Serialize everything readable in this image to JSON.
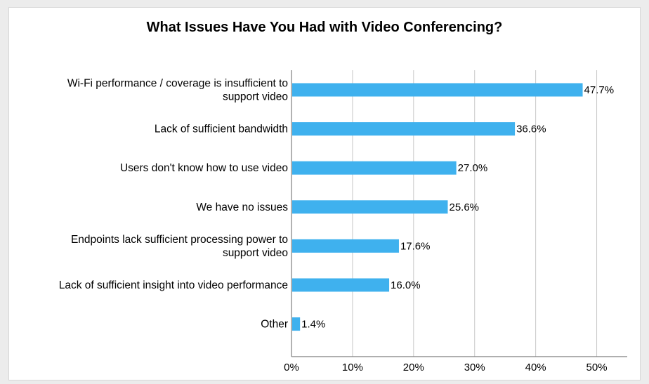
{
  "chart_data": {
    "type": "bar",
    "orientation": "horizontal",
    "title": "What Issues Have You Had with Video Conferencing?",
    "categories": [
      "Wi-Fi performance / coverage is insufficient to support video",
      "Lack of sufficient bandwidth",
      "Users don't know how to use video",
      "We have no issues",
      "Endpoints lack sufficient processing power to support video",
      "Lack of sufficient insight into video performance",
      "Other"
    ],
    "category_lines": [
      [
        "Wi-Fi performance / coverage is insufficient to",
        "support video"
      ],
      [
        "Lack of sufficient bandwidth"
      ],
      [
        "Users don't know how to use video"
      ],
      [
        "We have no issues"
      ],
      [
        "Endpoints lack sufficient processing power to",
        "support video"
      ],
      [
        "Lack of sufficient insight into video performance"
      ],
      [
        "Other"
      ]
    ],
    "values": [
      47.7,
      36.6,
      27.0,
      25.6,
      17.6,
      16.0,
      1.4
    ],
    "data_labels": [
      "47.7%",
      "36.6%",
      "27.0%",
      "25.6%",
      "17.6%",
      "16.0%",
      "1.4%"
    ],
    "xlim": [
      0,
      55
    ],
    "x_ticks": [
      0,
      10,
      20,
      30,
      40,
      50
    ],
    "x_tick_labels": [
      "0%",
      "10%",
      "20%",
      "30%",
      "40%",
      "50%"
    ],
    "grid": true,
    "legend": "none",
    "bar_color": "#3fb1ee"
  }
}
